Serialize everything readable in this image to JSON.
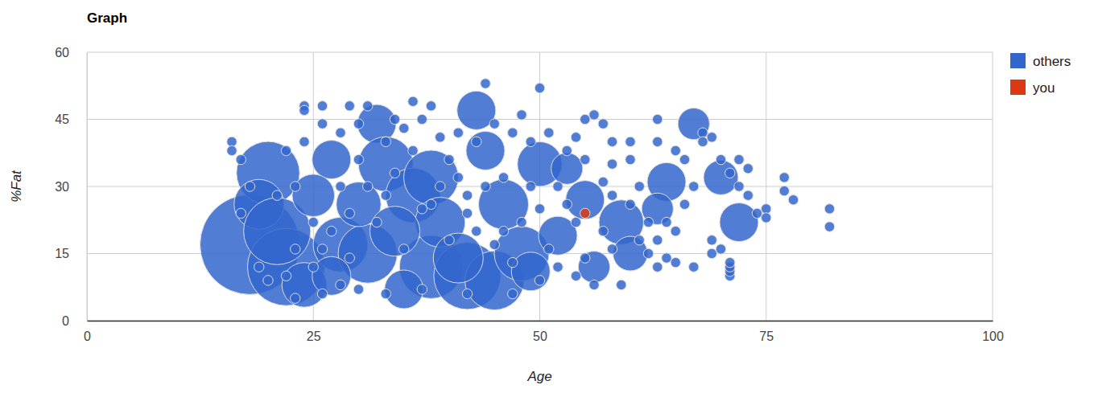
{
  "chart_data": {
    "type": "bubble",
    "title": "Graph",
    "x_label": "Age",
    "y_label": "%Fat",
    "xlim": [
      0,
      100
    ],
    "xticks": [
      0,
      25,
      50,
      75,
      100
    ],
    "ylim": [
      0,
      60
    ],
    "yticks": [
      0,
      15,
      30,
      45,
      60
    ],
    "grid": true,
    "legend": "right",
    "series": [
      {
        "name": "others",
        "color": "#3366cc",
        "x": [
          18,
          20,
          19,
          22,
          21,
          24,
          27,
          28,
          32,
          33,
          31,
          36,
          38,
          38,
          43,
          42,
          45,
          46,
          48,
          50,
          52,
          55,
          59,
          60,
          64,
          67,
          70,
          72,
          63,
          39,
          30,
          25,
          34,
          44,
          41,
          27,
          35,
          49,
          56,
          53,
          16,
          16,
          17,
          24,
          24,
          26,
          29,
          31,
          36,
          38,
          44,
          50,
          48,
          55,
          56,
          57,
          58,
          60,
          63,
          63,
          65,
          66,
          68,
          68,
          69,
          70,
          71,
          72,
          73,
          72,
          73,
          74,
          75,
          75,
          77,
          77,
          78,
          82,
          82,
          71,
          71,
          71,
          71,
          70,
          69,
          69,
          67,
          65,
          64,
          63,
          62,
          61,
          59,
          56,
          54,
          50,
          47,
          42,
          37,
          33,
          30,
          28,
          26,
          23,
          22,
          20,
          25,
          27,
          29,
          31,
          33,
          35,
          37,
          39,
          41,
          43,
          45,
          47,
          49,
          51,
          53,
          54,
          52,
          50,
          48,
          46,
          44,
          42,
          40,
          36,
          34,
          30,
          28,
          26,
          24,
          22,
          23,
          25,
          28,
          32,
          35,
          37,
          40,
          43,
          46,
          49,
          51,
          54,
          57,
          58,
          60,
          62,
          61,
          64,
          66,
          67,
          65,
          63,
          60,
          58,
          55,
          57,
          58,
          55,
          53,
          52,
          47,
          45,
          42,
          39,
          33,
          29,
          26,
          21,
          18,
          17,
          19,
          23,
          30,
          34,
          38,
          41,
          44,
          47,
          50,
          48,
          46,
          56,
          59,
          61
        ],
        "values": [
          17,
          33,
          26,
          12,
          20,
          8,
          36,
          17,
          44,
          35,
          15,
          28,
          12,
          32,
          47,
          10,
          9,
          26,
          15,
          35,
          19,
          27,
          22,
          15,
          31,
          44,
          32,
          22,
          25,
          22,
          26,
          28,
          20,
          38,
          14,
          10,
          7,
          11,
          12,
          34,
          40,
          38,
          36,
          48,
          47,
          48,
          48,
          48,
          49,
          48,
          53,
          52,
          46,
          45,
          46,
          44,
          40,
          36,
          45,
          40,
          38,
          36,
          42,
          40,
          41,
          36,
          33,
          36,
          34,
          30,
          28,
          24,
          25,
          23,
          32,
          29,
          27,
          25,
          21,
          10,
          11,
          12,
          13,
          16,
          18,
          15,
          12,
          13,
          14,
          12,
          15,
          18,
          8,
          8,
          10,
          9,
          6,
          6,
          7,
          6,
          7,
          8,
          6,
          5,
          10,
          9,
          12,
          20,
          24,
          30,
          40,
          43,
          45,
          41,
          42,
          40,
          44,
          42,
          40,
          42,
          38,
          41,
          30,
          25,
          22,
          20,
          30,
          28,
          36,
          38,
          45,
          44,
          42,
          44,
          40,
          38,
          30,
          22,
          30,
          22,
          16,
          25,
          18,
          20,
          32,
          30,
          16,
          22,
          31,
          28,
          26,
          22,
          30,
          22,
          26,
          30,
          20,
          18,
          40,
          35,
          36,
          20,
          16,
          14,
          26,
          12,
          13,
          17,
          24,
          30,
          28,
          14,
          16,
          28,
          30,
          24,
          12,
          16,
          36,
          33,
          26,
          32,
          34,
          36,
          30,
          27,
          38,
          24,
          30,
          25
        ],
        "sizes": [
          100,
          40,
          25,
          60,
          45,
          20,
          15,
          30,
          15,
          30,
          35,
          30,
          40,
          30,
          15,
          45,
          35,
          25,
          30,
          20,
          15,
          15,
          20,
          12,
          15,
          10,
          12,
          15,
          10,
          25,
          20,
          18,
          25,
          15,
          25,
          15,
          15,
          15,
          10,
          10,
          1,
          1,
          1,
          1,
          1,
          1,
          1,
          1,
          1,
          1,
          1,
          1,
          1,
          1,
          1,
          1,
          1,
          1,
          1,
          1,
          1,
          1,
          1,
          1,
          1,
          1,
          1,
          1,
          1,
          1,
          1,
          1,
          1,
          1,
          1,
          1,
          1,
          1,
          1,
          1,
          1,
          1,
          1,
          1,
          1,
          1,
          1,
          1,
          1,
          1,
          1,
          1,
          1,
          1,
          1,
          1,
          1,
          1,
          1,
          1,
          1,
          1,
          1,
          1,
          1,
          1,
          1,
          1,
          1,
          1,
          1,
          1,
          1,
          1,
          1,
          1,
          1,
          1,
          1,
          1,
          1,
          1,
          1,
          1,
          1,
          1,
          1,
          1,
          1,
          1,
          1,
          1,
          1,
          1,
          1,
          1,
          1,
          1,
          1,
          1,
          1,
          1,
          1,
          1,
          1,
          1,
          1,
          1,
          1,
          1,
          1,
          1,
          1,
          1,
          1,
          1,
          1,
          1,
          1,
          1,
          1,
          1,
          1,
          1,
          1,
          1,
          1,
          1,
          1,
          1,
          1,
          1,
          1,
          1,
          1,
          1,
          1,
          1,
          1,
          1,
          1,
          1
        ]
      },
      {
        "name": "you",
        "color": "#dc3912",
        "x": [
          55
        ],
        "values": [
          24
        ],
        "sizes": [
          1
        ]
      }
    ]
  }
}
